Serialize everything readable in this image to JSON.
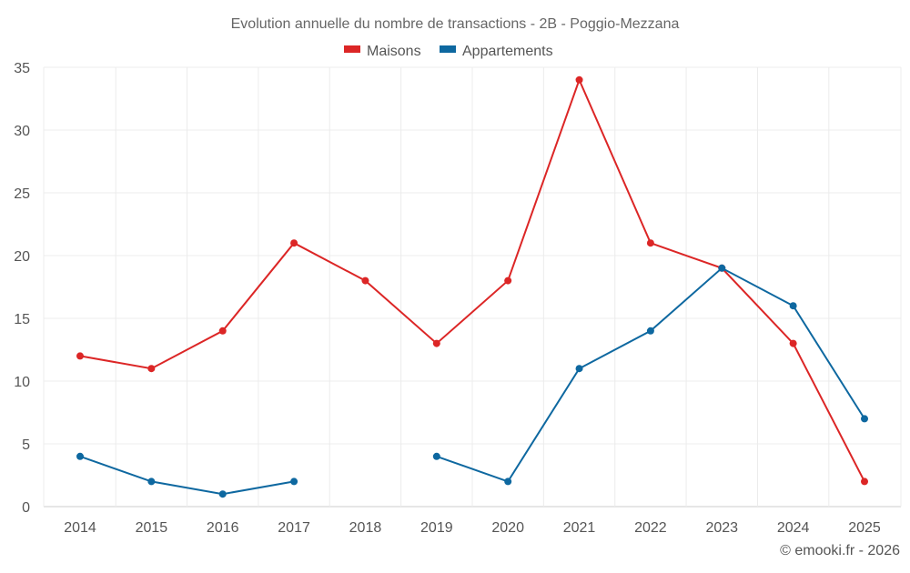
{
  "chart_data": {
    "type": "line",
    "title": "Evolution annuelle du nombre de transactions - 2B - Poggio-Mezzana",
    "xlabel": "",
    "ylabel": "",
    "x": [
      "2014",
      "2015",
      "2016",
      "2017",
      "2018",
      "2019",
      "2020",
      "2021",
      "2022",
      "2023",
      "2024",
      "2025"
    ],
    "ylim": [
      0,
      35
    ],
    "yticks": [
      0,
      5,
      10,
      15,
      20,
      25,
      30,
      35
    ],
    "grid": true,
    "legend_position": "top-center",
    "series": [
      {
        "name": "Maisons",
        "color": "#dc2626",
        "values": [
          12,
          11,
          14,
          21,
          18,
          13,
          18,
          34,
          21,
          19,
          13,
          2
        ]
      },
      {
        "name": "Appartements",
        "color": "#0e68a0",
        "values": [
          4,
          2,
          1,
          2,
          null,
          4,
          2,
          11,
          14,
          19,
          16,
          7
        ]
      }
    ]
  },
  "credit": "© emooki.fr - 2026"
}
